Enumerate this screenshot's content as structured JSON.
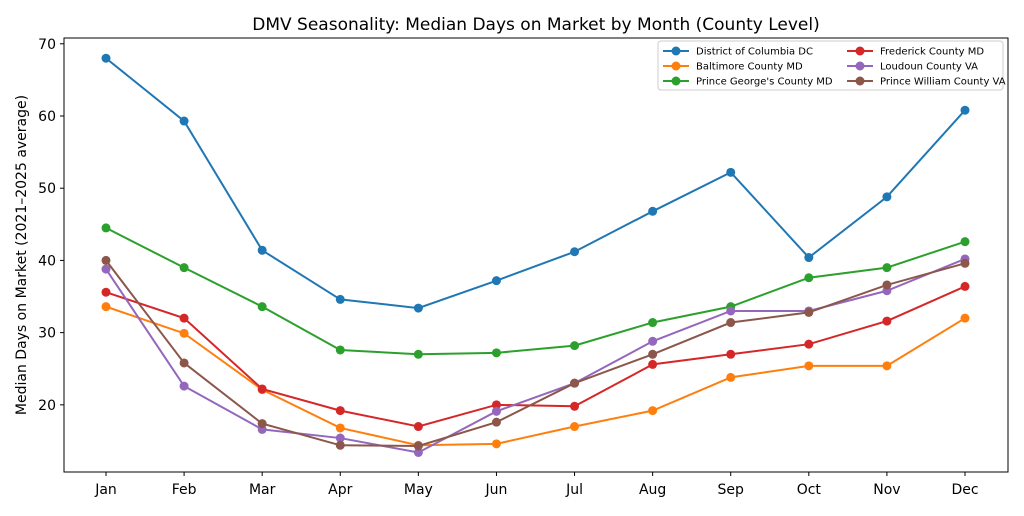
{
  "chart_data": {
    "type": "line",
    "title": "DMV Seasonality: Median Days on Market by Month (County Level)",
    "xlabel": "",
    "ylabel": "Median Days on Market (2021–2025 average)",
    "categories": [
      "Jan",
      "Feb",
      "Mar",
      "Apr",
      "May",
      "Jun",
      "Jul",
      "Aug",
      "Sep",
      "Oct",
      "Nov",
      "Dec"
    ],
    "yticks": [
      20,
      30,
      40,
      50,
      60,
      70
    ],
    "ylim": [
      10.7,
      70.8
    ],
    "grid": false,
    "legend_placement": "top-right",
    "series": [
      {
        "name": "District of Columbia DC",
        "color": "#1f77b4",
        "values": [
          68.0,
          59.3,
          41.4,
          34.6,
          33.4,
          37.2,
          41.2,
          46.8,
          52.2,
          40.4,
          48.8,
          60.8
        ]
      },
      {
        "name": "Baltimore County MD",
        "color": "#ff7f0e",
        "values": [
          33.6,
          29.9,
          22.1,
          16.8,
          14.4,
          14.6,
          17.0,
          19.2,
          23.8,
          25.4,
          25.4,
          32.0
        ]
      },
      {
        "name": "Prince George's County MD",
        "color": "#2ca02c",
        "values": [
          44.5,
          39.0,
          33.6,
          27.6,
          27.0,
          27.2,
          28.2,
          31.4,
          33.6,
          37.6,
          39.0,
          42.6
        ]
      },
      {
        "name": "Frederick County MD",
        "color": "#d62728",
        "values": [
          35.6,
          32.0,
          22.2,
          19.2,
          17.0,
          20.0,
          19.8,
          25.6,
          27.0,
          28.4,
          31.6,
          36.4
        ]
      },
      {
        "name": "Loudoun County VA",
        "color": "#9467bd",
        "values": [
          38.8,
          22.6,
          16.6,
          15.4,
          13.4,
          19.1,
          23.0,
          28.8,
          33.0,
          33.0,
          35.8,
          40.2
        ]
      },
      {
        "name": "Prince William County VA",
        "color": "#8c564b",
        "values": [
          40.0,
          25.8,
          17.4,
          14.4,
          14.3,
          17.6,
          23.0,
          27.0,
          31.4,
          32.8,
          36.6,
          39.6
        ]
      }
    ]
  }
}
